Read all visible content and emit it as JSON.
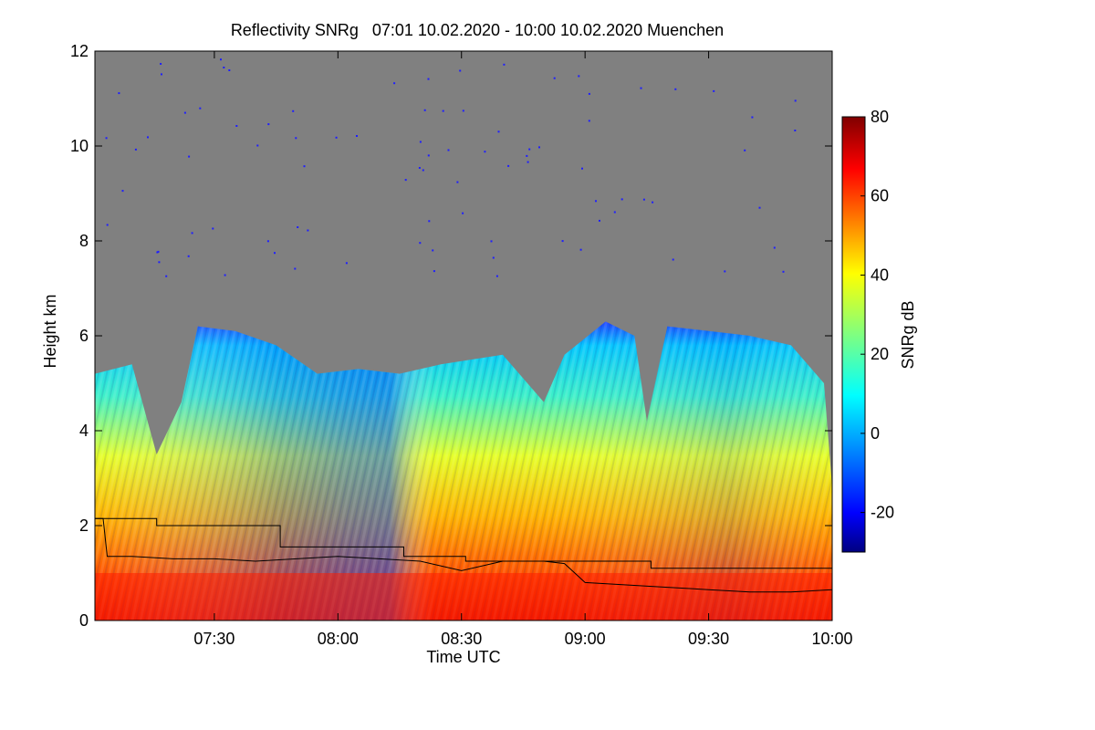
{
  "chart_data": {
    "type": "heatmap",
    "title": "Reflectivity SNRg   07:01 10.02.2020 - 10:00 10.02.2020 Muenchen",
    "xlabel": "Time UTC",
    "ylabel": "Height km",
    "colorbar_label": "SNRg dB",
    "x_range": [
      "07:01",
      "10:00"
    ],
    "y_range": [
      0,
      12
    ],
    "x_ticks": [
      "07:30",
      "08:00",
      "08:30",
      "09:00",
      "09:30",
      "10:00"
    ],
    "y_ticks": [
      "0",
      "2",
      "4",
      "6",
      "8",
      "10",
      "12"
    ],
    "colorbar_range": [
      -30,
      80
    ],
    "colorbar_ticks": [
      "-20",
      "0",
      "20",
      "40",
      "60",
      "80"
    ],
    "colormap": [
      "#000080",
      "#0000ff",
      "#00ffff",
      "#ffff00",
      "#ff0000",
      "#800000"
    ],
    "no_signal_color": "#808080",
    "cloud_top_km": {
      "times": [
        "07:01",
        "07:10",
        "07:16",
        "07:22",
        "07:26",
        "07:35",
        "07:45",
        "07:55",
        "08:05",
        "08:15",
        "08:25",
        "08:40",
        "08:50",
        "08:55",
        "09:05",
        "09:12",
        "09:15",
        "09:20",
        "09:30",
        "09:40",
        "09:50",
        "09:58",
        "10:00"
      ],
      "heights": [
        5.2,
        5.4,
        3.5,
        4.6,
        6.2,
        6.1,
        5.8,
        5.2,
        5.3,
        5.2,
        5.4,
        5.6,
        4.6,
        5.6,
        6.3,
        6.0,
        4.2,
        6.2,
        6.1,
        6.0,
        5.8,
        5.0,
        2.8
      ]
    },
    "series": [
      {
        "times": [
          "07:01",
          "07:04",
          "07:04",
          "07:16",
          "07:16",
          "07:46",
          "07:46",
          "08:16",
          "08:16",
          "08:31",
          "08:31",
          "09:16",
          "09:16",
          "10:00"
        ],
        "values": [
          2.15,
          2.15,
          2.15,
          2.15,
          2.0,
          2.0,
          1.55,
          1.55,
          1.35,
          1.35,
          1.25,
          1.25,
          1.1,
          1.1
        ]
      },
      {
        "times": [
          "07:01",
          "07:03",
          "07:04",
          "07:10",
          "07:20",
          "07:30",
          "07:40",
          "07:50",
          "08:00",
          "08:10",
          "08:20",
          "08:30",
          "08:40",
          "08:50",
          "08:55",
          "09:00",
          "09:10",
          "09:20",
          "09:30",
          "09:40",
          "09:50",
          "10:00"
        ],
        "values": [
          2.15,
          2.15,
          1.35,
          1.35,
          1.3,
          1.3,
          1.25,
          1.3,
          1.35,
          1.3,
          1.25,
          1.05,
          1.25,
          1.25,
          1.2,
          0.8,
          0.75,
          0.7,
          0.65,
          0.6,
          0.6,
          0.65
        ]
      }
    ]
  }
}
